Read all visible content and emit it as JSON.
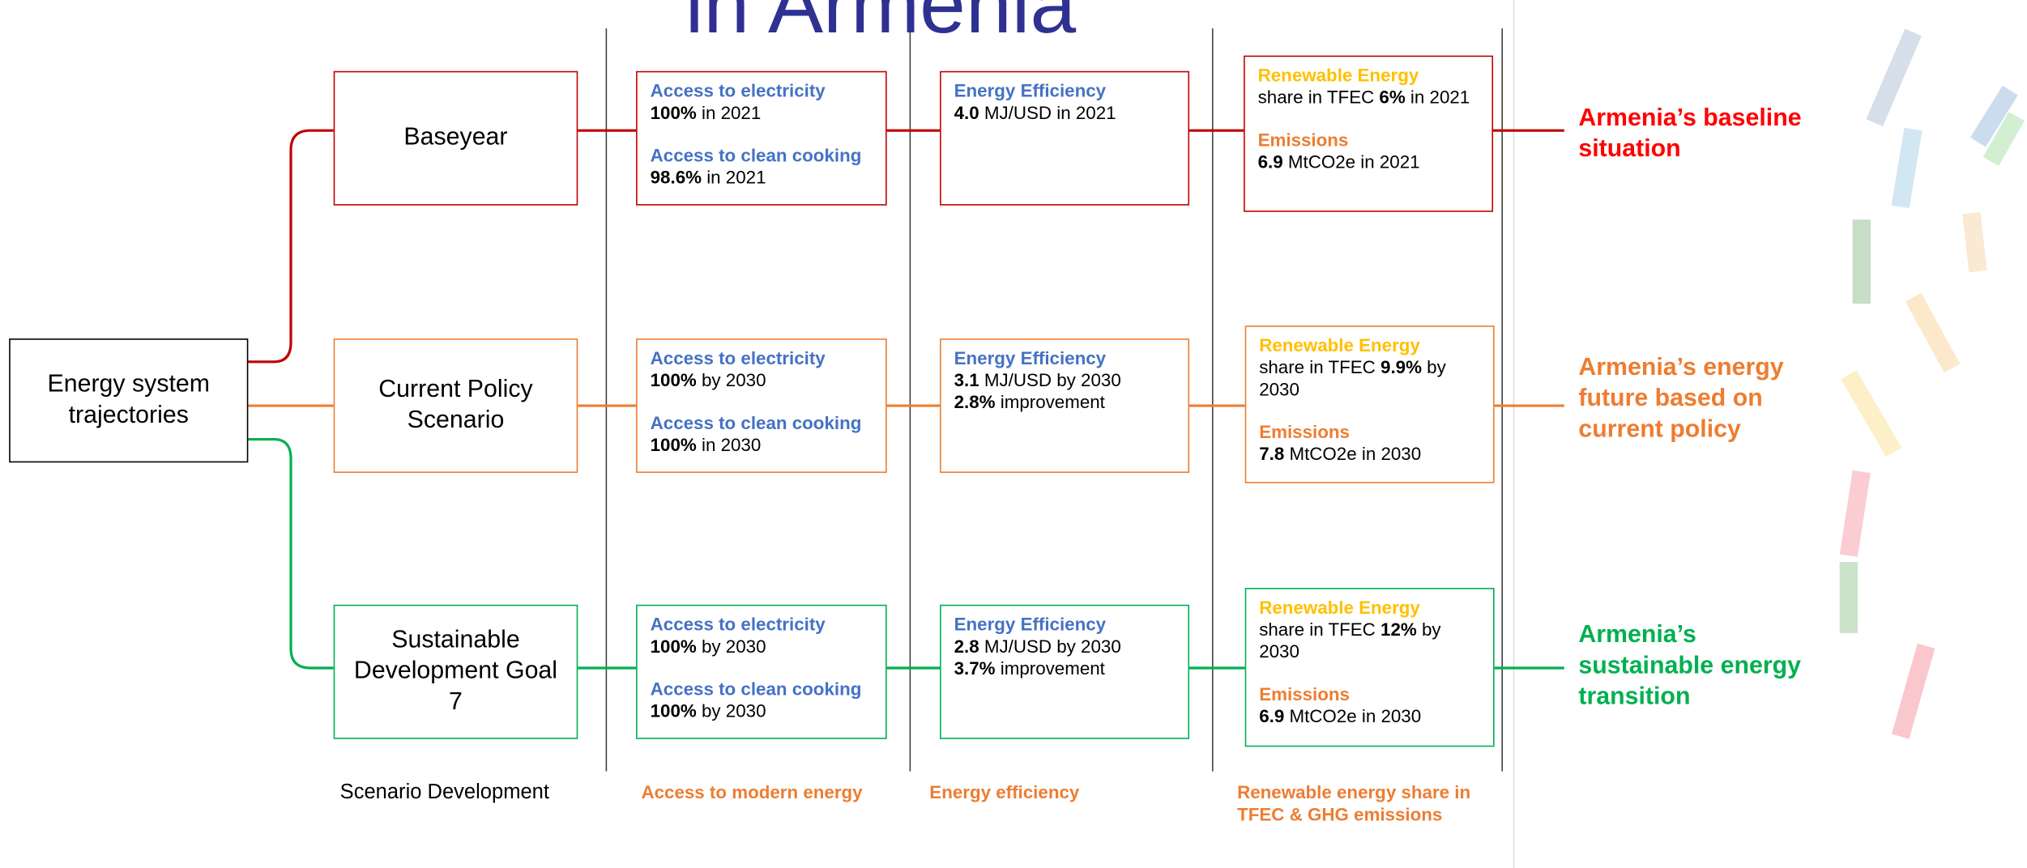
{
  "title": "in Armenia",
  "root": "Energy system trajectories",
  "rows": [
    {
      "scenario": "Baseyear",
      "color": "#c00000",
      "access": {
        "elec_label": "Access to electricity",
        "elec_value": "100%",
        "elec_rest": "in 2021",
        "cook_label": "Access to clean cooking",
        "cook_value": "98.6%",
        "cook_rest": "in 2021"
      },
      "efficiency": {
        "label": "Energy Efficiency",
        "value": "4.0",
        "rest": "MJ/USD in 2021"
      },
      "renewable": {
        "label": "Renewable Energy",
        "pre": "share in TFEC",
        "value": "6%",
        "rest": "in 2021",
        "em_label": "Emissions",
        "em_value": "6.9",
        "em_rest": "MtCO2e in 2021"
      },
      "outcome": "Armenia’s baseline situation",
      "outcome_color": "#ff0000"
    },
    {
      "scenario": "Current Policy Scenario",
      "color": "#ed7d31",
      "access": {
        "elec_label": "Access to electricity",
        "elec_value": "100%",
        "elec_rest": "by 2030",
        "cook_label": "Access to clean cooking",
        "cook_value": "100%",
        "cook_rest": "in 2030"
      },
      "efficiency": {
        "label": "Energy Efficiency",
        "value": "3.1",
        "rest": "MJ/USD by 2030",
        "imp_value": "2.8%",
        "imp_rest": "improvement"
      },
      "renewable": {
        "label": "Renewable Energy",
        "pre": "share in TFEC",
        "value": "9.9%",
        "rest": "by 2030",
        "em_label": "Emissions",
        "em_value": "7.8",
        "em_rest": "MtCO2e in 2030"
      },
      "outcome": "Armenia’s energy future based on current policy",
      "outcome_color": "#ed7d31"
    },
    {
      "scenario": "Sustainable Development Goal 7",
      "color": "#00b050",
      "access": {
        "elec_label": "Access to electricity",
        "elec_value": "100%",
        "elec_rest": "by 2030",
        "cook_label": "Access to clean cooking",
        "cook_value": "100%",
        "cook_rest": "by 2030"
      },
      "efficiency": {
        "label": "Energy Efficiency",
        "value": "2.8",
        "rest": "MJ/USD by 2030",
        "imp_value": "3.7%",
        "imp_rest": "improvement"
      },
      "renewable": {
        "label": "Renewable Energy",
        "pre": "share in TFEC",
        "value": "12%",
        "rest": "by 2030",
        "em_label": "Emissions",
        "em_value": "6.9",
        "em_rest": "MtCO2e in 2030"
      },
      "outcome": "Armenia’s sustainable energy transition",
      "outcome_color": "#00b050"
    }
  ],
  "footers": [
    "Scenario Development",
    "Access to modern energy",
    "Energy efficiency",
    "Renewable energy share in TFEC & GHG emissions"
  ]
}
